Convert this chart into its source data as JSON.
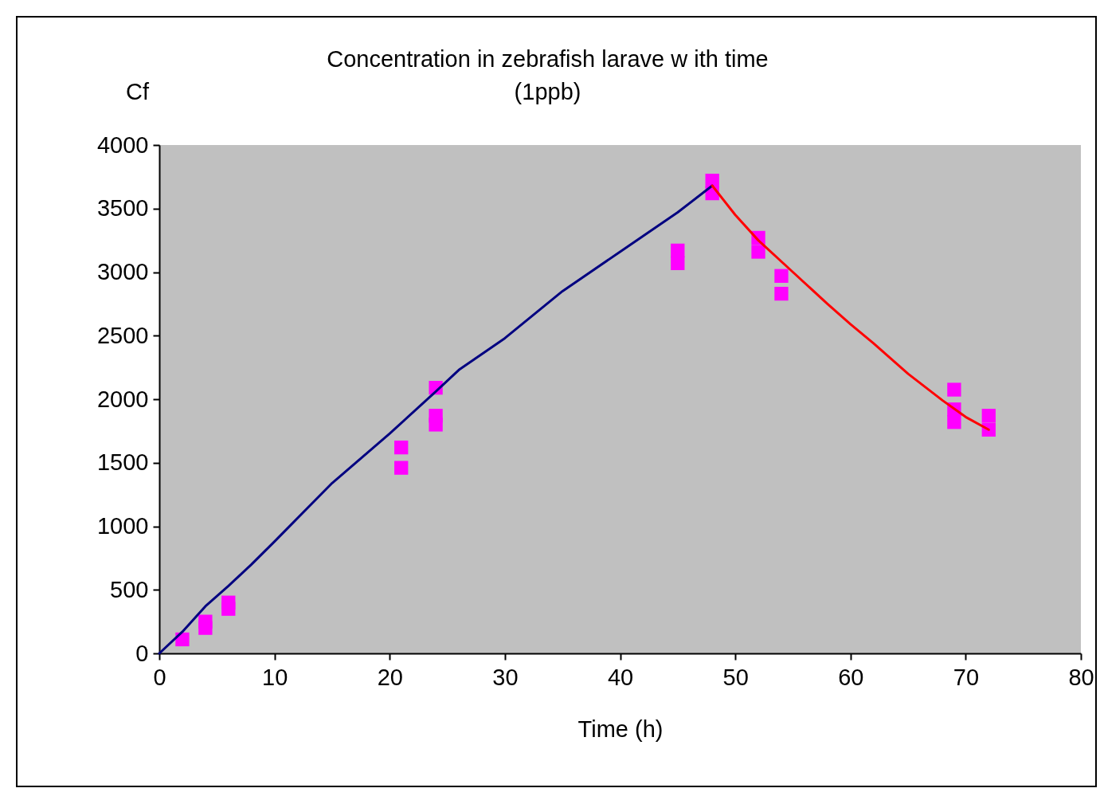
{
  "chart_data": {
    "type": "scatter",
    "title": "Concentration in zebrafish larave w ith time",
    "subtitle": "(1ppb)",
    "xlabel": "Time (h)",
    "ylabel": "Cf",
    "xlim": [
      0,
      80
    ],
    "xticks": [
      0,
      10,
      20,
      30,
      40,
      50,
      60,
      70,
      80
    ],
    "ylim": [
      0,
      4000
    ],
    "yticks": [
      0,
      500,
      1000,
      1500,
      2000,
      2500,
      3000,
      3500,
      4000
    ],
    "grid": false,
    "marker": "square",
    "series": [
      {
        "type": "line",
        "color": "#000080",
        "line_style": "solid",
        "marker": "none",
        "x": [
          0,
          2,
          4,
          6,
          8,
          10,
          15,
          20,
          24,
          26,
          30,
          35,
          40,
          45,
          48
        ],
        "values": [
          0,
          170,
          370,
          530,
          700,
          880,
          1340,
          1730,
          2060,
          2230,
          2480,
          2850,
          3160,
          3470,
          3680
        ]
      },
      {
        "type": "line",
        "color": "#ff0000",
        "line_style": "solid",
        "marker": "none",
        "x": [
          48,
          50,
          52,
          55,
          58,
          60,
          62,
          65,
          68,
          70,
          72
        ],
        "values": [
          3680,
          3450,
          3250,
          3000,
          2750,
          2590,
          2440,
          2200,
          1990,
          1860,
          1760
        ]
      },
      {
        "color": "#ff00ff",
        "x": [
          2,
          4,
          4,
          6,
          6,
          21,
          21,
          24,
          24,
          24,
          45,
          45,
          48,
          48,
          52,
          52,
          54,
          54,
          69,
          69,
          69,
          72,
          72
        ],
        "values": [
          110,
          250,
          200,
          400,
          350,
          1620,
          1460,
          2090,
          1870,
          1800,
          3170,
          3070,
          3720,
          3620,
          3270,
          3160,
          2970,
          2830,
          2075,
          1920,
          1820,
          1870,
          1760
        ]
      }
    ]
  }
}
